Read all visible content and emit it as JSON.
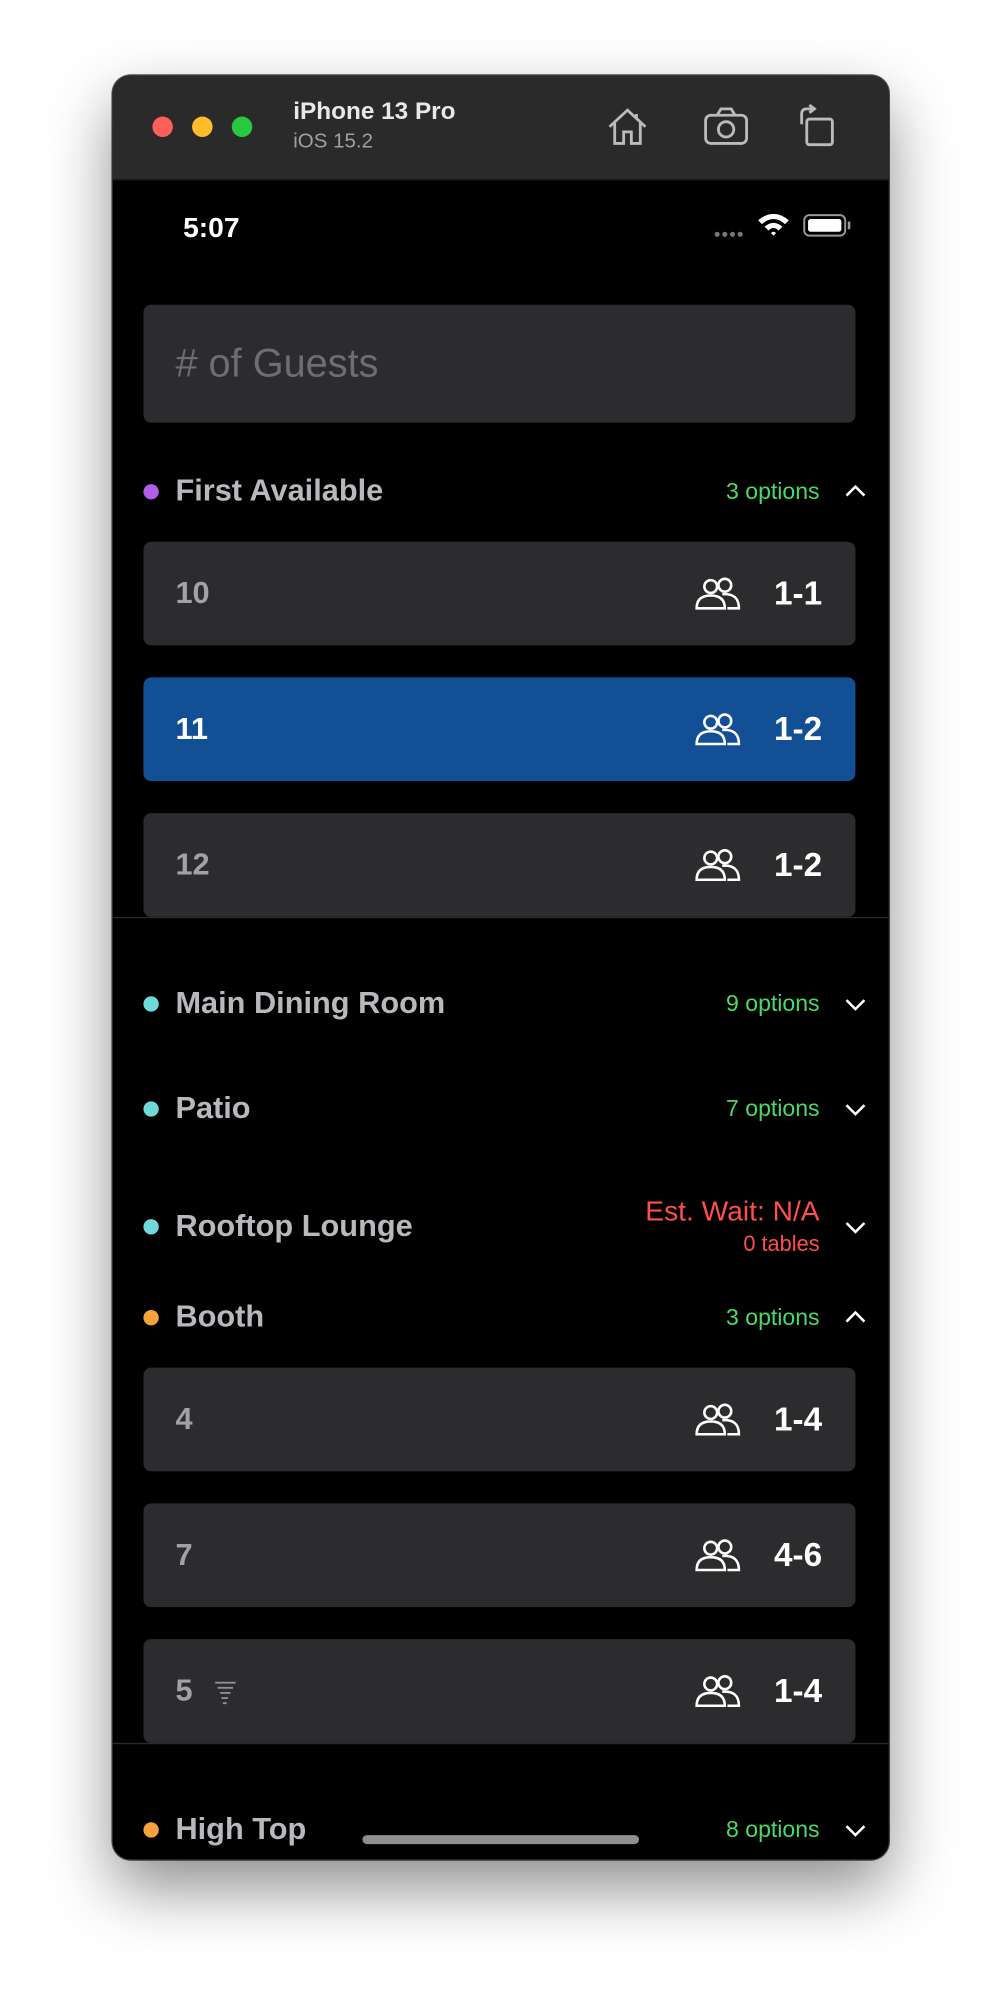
{
  "device": {
    "name": "iPhone 13 Pro",
    "os": "iOS 15.2"
  },
  "status_bar": {
    "time": "5:07"
  },
  "guests_input": {
    "placeholder": "# of Guests"
  },
  "sections": [
    {
      "name": "First Available",
      "dot_color": "#b35ee8",
      "summary": "3 options",
      "expanded": true,
      "tables": [
        {
          "number": "10",
          "capacity": "1-1"
        },
        {
          "number": "11",
          "capacity": "1-2",
          "selected": true
        },
        {
          "number": "12",
          "capacity": "1-2"
        }
      ]
    },
    {
      "name": "Main Dining Room",
      "dot_color": "#6fd8d8",
      "summary": "9 options",
      "expanded": false
    },
    {
      "name": "Patio",
      "dot_color": "#6fd8d8",
      "summary": "7 options",
      "expanded": false
    },
    {
      "name": "Rooftop Lounge",
      "dot_color": "#6fd8d8",
      "wait": "Est. Wait: N/A",
      "wait_detail": "0 tables",
      "expanded": false
    },
    {
      "name": "Booth",
      "dot_color": "#f7a23b",
      "summary": "3 options",
      "expanded": true,
      "tables": [
        {
          "number": "4",
          "capacity": "1-4"
        },
        {
          "number": "7",
          "capacity": "4-6"
        },
        {
          "number": "5",
          "capacity": "1-4",
          "weather_icon": true
        }
      ]
    },
    {
      "name": "High Top",
      "dot_color": "#f7a23b",
      "summary": "8 options",
      "expanded": false
    }
  ]
}
